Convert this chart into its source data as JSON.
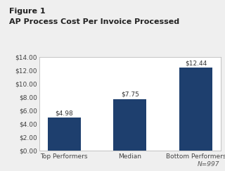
{
  "figure_label": "Figure 1",
  "title": "AP Process Cost Per Invoice Processed",
  "categories": [
    "Top Performers",
    "Median",
    "Bottom Performers"
  ],
  "values": [
    4.98,
    7.75,
    12.44
  ],
  "bar_color": "#1e3f6e",
  "bar_labels": [
    "$4.98",
    "$7.75",
    "$12.44"
  ],
  "ylim": [
    0,
    14
  ],
  "yticks": [
    0,
    2,
    4,
    6,
    8,
    10,
    12,
    14
  ],
  "ytick_labels": [
    "$0.00",
    "$2.00",
    "$4.00",
    "$6.00",
    "$8.00",
    "$10.00",
    "$12.00",
    "$14.00"
  ],
  "note": "N=997",
  "background_color": "#efefef",
  "plot_bg_color": "#ffffff",
  "figure_label_fontsize": 8,
  "title_fontsize": 8,
  "tick_fontsize": 6.5,
  "bar_label_fontsize": 6.5,
  "note_fontsize": 6.5
}
